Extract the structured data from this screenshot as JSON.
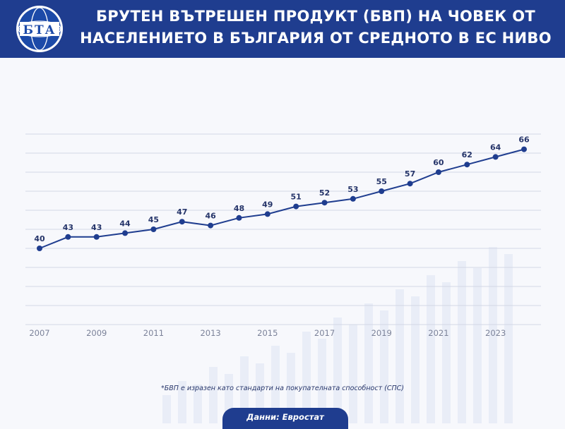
{
  "header": {
    "title_line1": "БРУТЕН ВЪТРЕШЕН ПРОДУКТ (БВП) НА ЧОВЕК ОТ",
    "title_line2": "НАСЕЛЕНИЕТО В БЪЛГАРИЯ ОТ СРЕДНОТО В ЕС НИВО",
    "logo_text": "БТА"
  },
  "colors": {
    "header_bg": "#1f3d8f",
    "line": "#1f3d8f",
    "marker": "#1f3d8f",
    "labels": "#26356a"
  },
  "chart_data": {
    "type": "line",
    "title": "БРУТЕН ВЪТРЕШЕН ПРОДУКТ (БВП) НА ЧОВЕК ОТ НАСЕЛЕНИЕТО В БЪЛГАРИЯ ОТ СРЕДНОТО В ЕС НИВО",
    "x": [
      2007,
      2008,
      2009,
      2010,
      2011,
      2012,
      2013,
      2014,
      2015,
      2016,
      2017,
      2018,
      2019,
      2020,
      2021,
      2022,
      2023,
      2024
    ],
    "x_tick_labels": [
      "2007",
      "2009",
      "2011",
      "2013",
      "2015",
      "2017",
      "2019",
      "2021",
      "2023"
    ],
    "series": [
      {
        "values": [
          40,
          43,
          43,
          44,
          45,
          47,
          46,
          48,
          49,
          51,
          52,
          53,
          55,
          57,
          60,
          62,
          64,
          66
        ]
      }
    ],
    "ylim": [
      20,
      70
    ],
    "grid": true,
    "data_labels": true,
    "legend": false
  },
  "footnote": "*БВП е изразен като стандарти на покупателната способност (СПС)",
  "source": "Данни: Евростат"
}
